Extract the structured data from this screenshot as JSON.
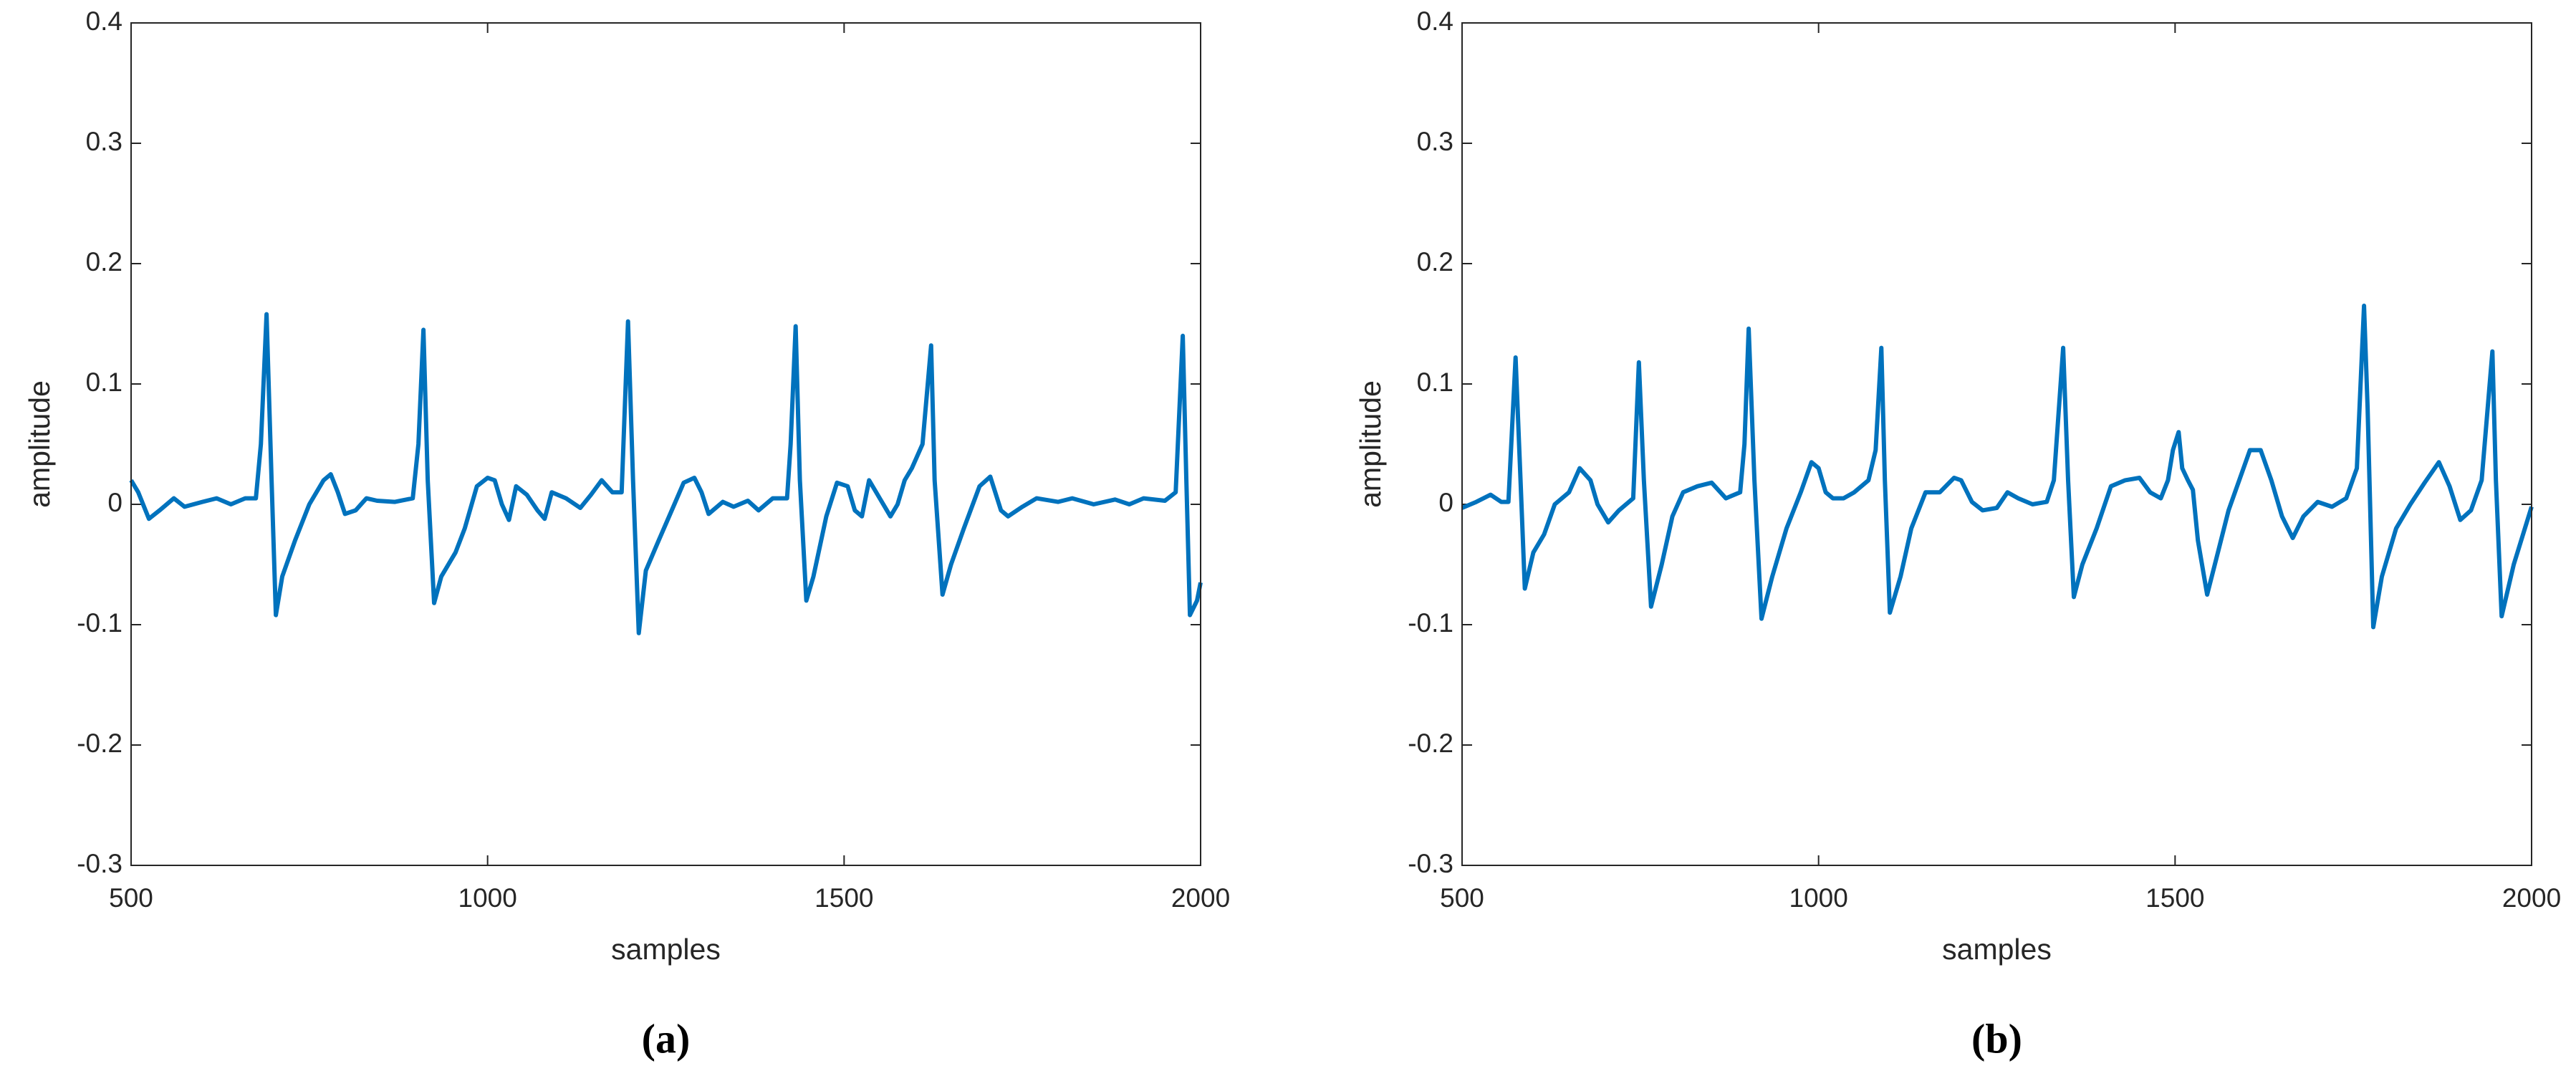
{
  "chart_data": [
    {
      "type": "line",
      "caption": "(a)",
      "xlabel": "samples",
      "ylabel": "amplitude",
      "xlim": [
        500,
        2000
      ],
      "xticks": [
        500,
        1000,
        1500,
        2000
      ],
      "ylim": [
        -0.3,
        0.4
      ],
      "yticks": [
        -0.3,
        -0.2,
        -0.1,
        0,
        0.1,
        0.2,
        0.3,
        0.4
      ],
      "color": "#0072bd",
      "x": [
        500,
        510,
        525,
        540,
        560,
        575,
        600,
        620,
        640,
        660,
        675,
        682,
        690,
        697,
        703,
        712,
        730,
        750,
        770,
        780,
        790,
        800,
        815,
        830,
        845,
        870,
        895,
        903,
        910,
        916,
        925,
        935,
        955,
        968,
        985,
        1000,
        1010,
        1020,
        1030,
        1040,
        1055,
        1070,
        1080,
        1090,
        1110,
        1130,
        1145,
        1160,
        1175,
        1188,
        1197,
        1204,
        1212,
        1222,
        1240,
        1262,
        1275,
        1290,
        1300,
        1310,
        1330,
        1345,
        1365,
        1380,
        1400,
        1420,
        1425,
        1432,
        1438,
        1447,
        1457,
        1475,
        1490,
        1505,
        1515,
        1525,
        1535,
        1550,
        1565,
        1575,
        1585,
        1595,
        1610,
        1622,
        1627,
        1638,
        1650,
        1668,
        1690,
        1705,
        1720,
        1730,
        1750,
        1770,
        1800,
        1820,
        1850,
        1880,
        1900,
        1920,
        1950,
        1965,
        1975,
        1980,
        1985,
        1995,
        2000
      ],
      "values": [
        0.02,
        0.01,
        -0.012,
        -0.005,
        0.005,
        -0.002,
        0.002,
        0.005,
        0,
        0.005,
        0.005,
        0.05,
        0.158,
        0.02,
        -0.092,
        -0.06,
        -0.03,
        0,
        0.02,
        0.025,
        0.01,
        -0.008,
        -0.005,
        0.005,
        0.003,
        0.002,
        0.005,
        0.05,
        0.145,
        0.02,
        -0.082,
        -0.06,
        -0.04,
        -0.02,
        0.015,
        0.022,
        0.02,
        0,
        -0.013,
        0.015,
        0.008,
        -0.005,
        -0.012,
        0.01,
        0.005,
        -0.003,
        0.008,
        0.02,
        0.01,
        0.01,
        0.152,
        0.02,
        -0.107,
        -0.055,
        -0.03,
        0,
        0.018,
        0.022,
        0.01,
        -0.008,
        0.002,
        -0.002,
        0.003,
        -0.005,
        0.005,
        0.005,
        0.05,
        0.148,
        0.02,
        -0.08,
        -0.06,
        -0.01,
        0.018,
        0.015,
        -0.005,
        -0.01,
        0.02,
        0.005,
        -0.01,
        0,
        0.02,
        0.03,
        0.05,
        0.132,
        0.02,
        -0.075,
        -0.05,
        -0.02,
        0.015,
        0.023,
        -0.005,
        -0.01,
        -0.002,
        0.005,
        0.002,
        0.005,
        0,
        0.004,
        0,
        0.005,
        0.003,
        0.01,
        0.14,
        0.02,
        -0.092,
        -0.08,
        -0.065
      ]
    },
    {
      "type": "line",
      "caption": "(b)",
      "xlabel": "samples",
      "ylabel": "amplitude",
      "xlim": [
        500,
        2000
      ],
      "xticks": [
        500,
        1000,
        1500,
        2000
      ],
      "ylim": [
        -0.3,
        0.4
      ],
      "yticks": [
        -0.3,
        -0.2,
        -0.1,
        0,
        0.1,
        0.2,
        0.3,
        0.4
      ],
      "color": "#0072bd",
      "x": [
        500,
        520,
        540,
        555,
        565,
        575,
        582,
        588,
        600,
        615,
        630,
        650,
        665,
        680,
        690,
        705,
        720,
        740,
        748,
        755,
        765,
        780,
        795,
        810,
        830,
        850,
        870,
        890,
        896,
        902,
        910,
        920,
        935,
        955,
        975,
        990,
        1000,
        1010,
        1020,
        1035,
        1050,
        1070,
        1080,
        1088,
        1093,
        1100,
        1115,
        1130,
        1150,
        1170,
        1190,
        1200,
        1215,
        1230,
        1250,
        1265,
        1280,
        1300,
        1320,
        1330,
        1343,
        1350,
        1358,
        1370,
        1390,
        1410,
        1430,
        1450,
        1465,
        1480,
        1490,
        1497,
        1505,
        1510,
        1518,
        1525,
        1532,
        1545,
        1560,
        1575,
        1590,
        1605,
        1620,
        1635,
        1650,
        1665,
        1680,
        1700,
        1720,
        1740,
        1755,
        1765,
        1770,
        1778,
        1790,
        1810,
        1830,
        1850,
        1870,
        1885,
        1900,
        1915,
        1930,
        1945,
        1950,
        1958,
        1975,
        2000
      ],
      "values": [
        -0.003,
        0.002,
        0.008,
        0.002,
        0.002,
        0.122,
        0.02,
        -0.07,
        -0.04,
        -0.025,
        0,
        0.01,
        0.03,
        0.02,
        0,
        -0.015,
        -0.005,
        0.005,
        0.118,
        0.02,
        -0.085,
        -0.05,
        -0.01,
        0.01,
        0.015,
        0.018,
        0.005,
        0.01,
        0.05,
        0.146,
        0.02,
        -0.095,
        -0.06,
        -0.02,
        0.01,
        0.035,
        0.03,
        0.01,
        0.005,
        0.005,
        0.01,
        0.02,
        0.045,
        0.13,
        0.02,
        -0.09,
        -0.06,
        -0.02,
        0.01,
        0.01,
        0.022,
        0.02,
        0.002,
        -0.005,
        -0.003,
        0.01,
        0.005,
        0,
        0.002,
        0.02,
        0.13,
        0.02,
        -0.077,
        -0.05,
        -0.02,
        0.015,
        0.02,
        0.022,
        0.01,
        0.005,
        0.02,
        0.045,
        0.06,
        0.03,
        0.02,
        0.012,
        -0.03,
        -0.075,
        -0.04,
        -0.005,
        0.02,
        0.045,
        0.045,
        0.02,
        -0.01,
        -0.028,
        -0.01,
        0.002,
        -0.002,
        0.005,
        0.03,
        0.165,
        0.08,
        -0.102,
        -0.06,
        -0.02,
        0,
        0.018,
        0.035,
        0.015,
        -0.013,
        -0.005,
        0.02,
        0.127,
        0.02,
        -0.093,
        -0.05,
        -0.002
      ]
    }
  ]
}
